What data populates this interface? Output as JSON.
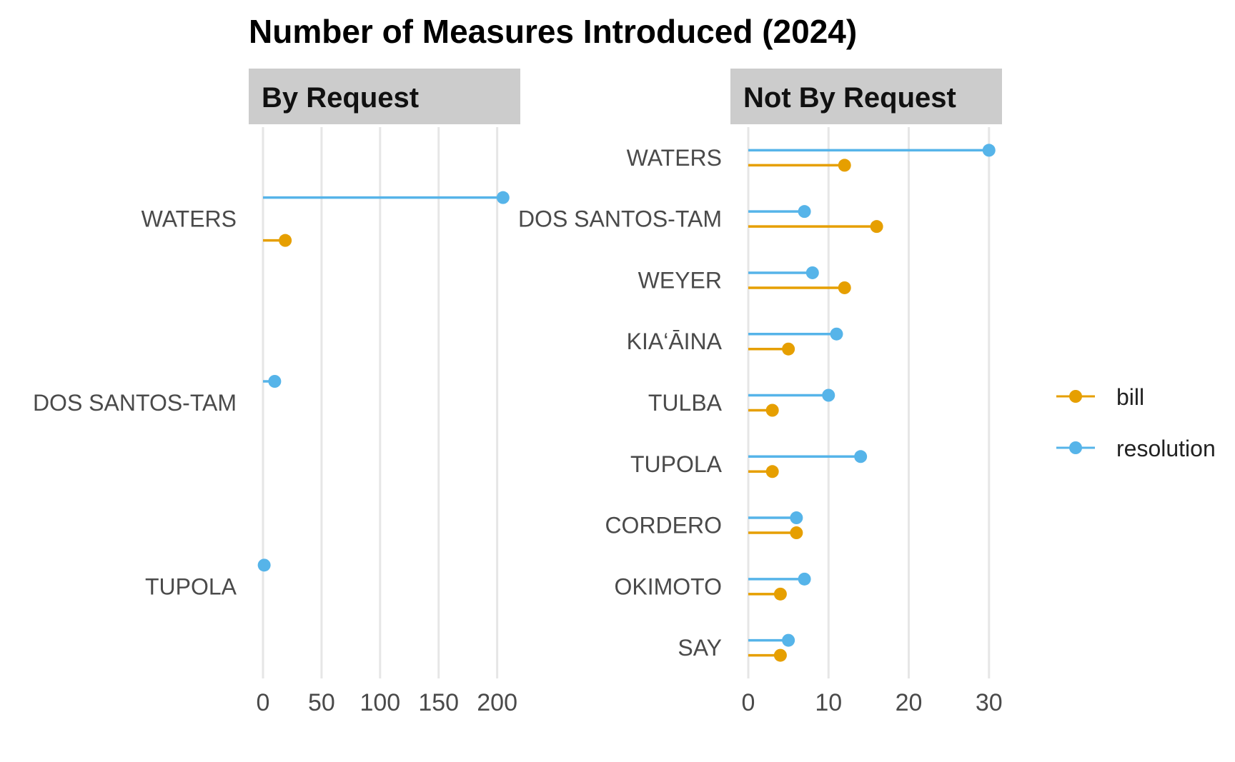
{
  "chart_data": {
    "type": "lollipop",
    "title": "Number of Measures Introduced (2024)",
    "series_colors": {
      "bill": "#E69F00",
      "resolution": "#56B4E9"
    },
    "legend": {
      "position": "right",
      "entries": [
        "bill",
        "resolution"
      ]
    },
    "panels": [
      {
        "name": "By Request",
        "xlim": [
          0,
          210
        ],
        "ticks": [
          0,
          50,
          100,
          150,
          200
        ],
        "categories": [
          "WATERS",
          "DOS SANTOS-TAM",
          "TUPOLA"
        ],
        "series": [
          {
            "name": "resolution",
            "values": [
              205,
              10,
              1
            ]
          },
          {
            "name": "bill",
            "values": [
              19,
              null,
              null
            ]
          }
        ]
      },
      {
        "name": "Not By Request",
        "xlim": [
          0,
          31
        ],
        "ticks": [
          0,
          10,
          20,
          30
        ],
        "categories": [
          "WATERS",
          "DOS SANTOS-TAM",
          "WEYER",
          "KIA‘ĀINA",
          "TULBA",
          "TUPOLA",
          "CORDERO",
          "OKIMOTO",
          "SAY"
        ],
        "series": [
          {
            "name": "resolution",
            "values": [
              30,
              7,
              8,
              11,
              10,
              14,
              6,
              7,
              5
            ]
          },
          {
            "name": "bill",
            "values": [
              12,
              16,
              12,
              5,
              3,
              3,
              6,
              4,
              4
            ]
          }
        ]
      }
    ]
  }
}
